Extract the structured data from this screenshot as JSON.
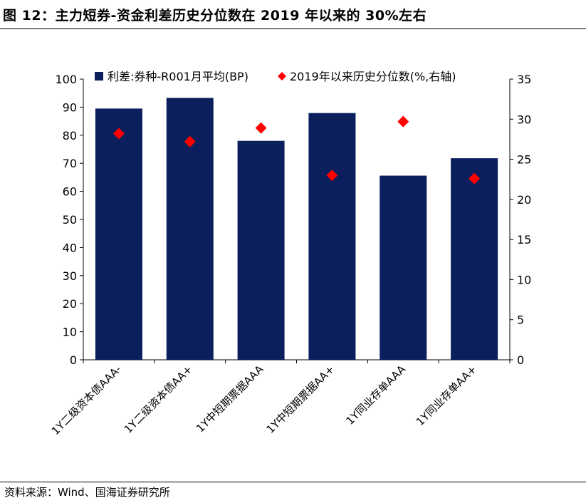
{
  "figure": {
    "title": "图 12：主力短券-资金利差历史分位数在 2019 年以来的 30%左右",
    "source": "资料来源：Wind、国海证券研究所"
  },
  "colors": {
    "bar": "#0a1f5c",
    "marker": "#ff0000"
  },
  "chart_data": {
    "type": "bar",
    "categories": [
      "1Y二级资本债AAA-",
      "1Y二级资本债AA+",
      "1Y中短期票据AAA",
      "1Y中短期票据AA+",
      "1Y同业存单AAA",
      "1Y同业存单AA+"
    ],
    "series": [
      {
        "name": "利差:券种-R001月平均(BP)",
        "kind": "bar",
        "axis": "left",
        "values": [
          89.5,
          93.3,
          78.0,
          87.9,
          65.6,
          71.8
        ]
      },
      {
        "name": "2019年以来历史分位数(%,右轴)",
        "kind": "scatter",
        "axis": "right",
        "values": [
          28.2,
          27.2,
          28.9,
          23.0,
          29.7,
          22.6
        ]
      }
    ],
    "y_left": {
      "min": 0,
      "max": 100,
      "step": 10,
      "ticks": [
        "0",
        "10",
        "20",
        "30",
        "40",
        "50",
        "60",
        "70",
        "80",
        "90",
        "100"
      ]
    },
    "y_right": {
      "min": 0,
      "max": 35,
      "step": 5,
      "ticks": [
        "0",
        "5",
        "10",
        "15",
        "20",
        "25",
        "30",
        "35"
      ]
    },
    "legend": {
      "position": "top",
      "bar_label": "利差:券种-R001月平均(BP)",
      "marker_label": "2019年以来历史分位数(%,右轴)"
    },
    "grid": false
  }
}
